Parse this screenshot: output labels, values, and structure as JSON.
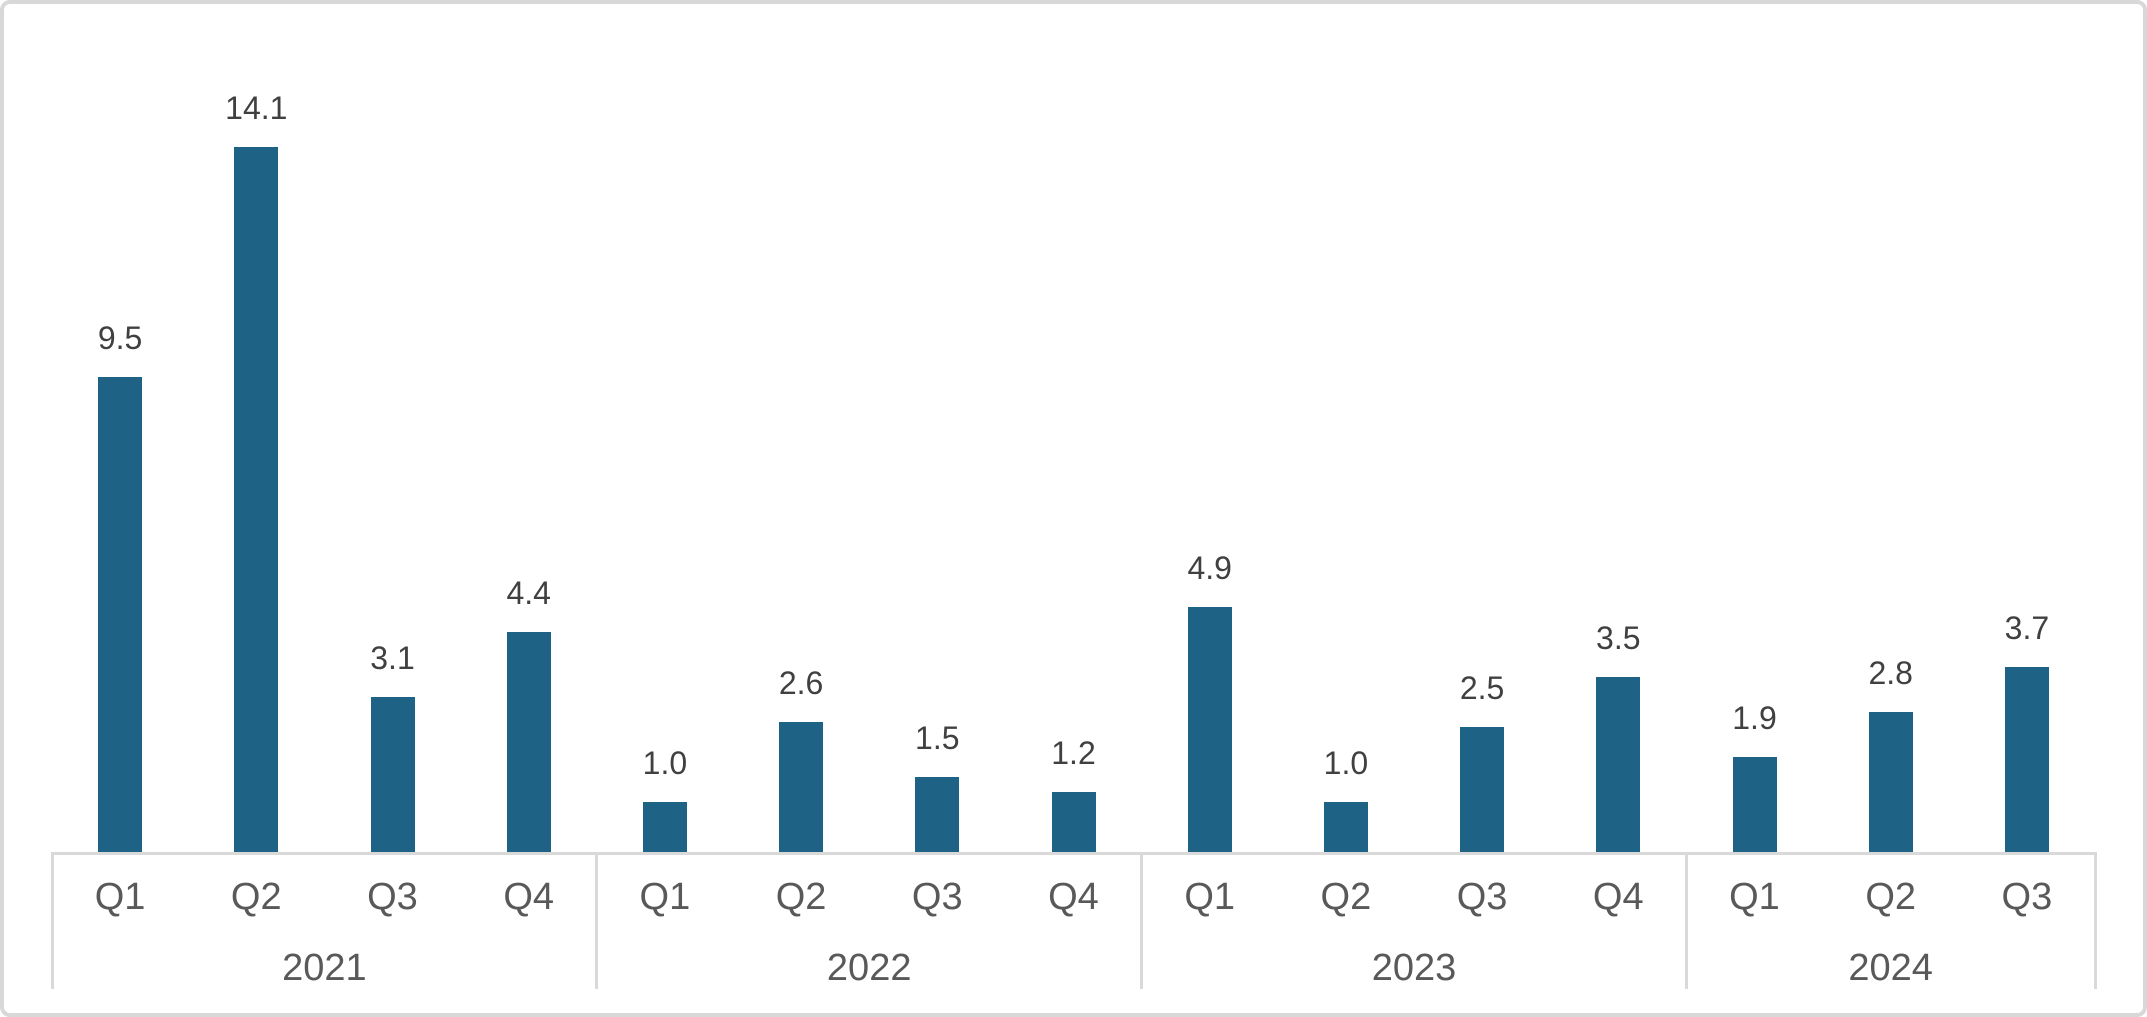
{
  "chart_data": {
    "type": "bar",
    "grid": false,
    "legend": false,
    "y_axis_labels_visible": false,
    "ylim": [
      0,
      15
    ],
    "bar_color": "#1e6386",
    "value_label_color": "#404040",
    "axis_label_color": "#595959",
    "axis_line_color": "#d9d9d9",
    "groups": [
      {
        "year": "2021",
        "quarters": [
          "Q1",
          "Q2",
          "Q3",
          "Q4"
        ],
        "values": [
          9.5,
          14.1,
          3.1,
          4.4
        ],
        "labels": [
          "9.5",
          "14.1",
          "3.1",
          "4.4"
        ]
      },
      {
        "year": "2022",
        "quarters": [
          "Q1",
          "Q2",
          "Q3",
          "Q4"
        ],
        "values": [
          1.0,
          2.6,
          1.5,
          1.2
        ],
        "labels": [
          "1.0",
          "2.6",
          "1.5",
          "1.2"
        ]
      },
      {
        "year": "2023",
        "quarters": [
          "Q1",
          "Q2",
          "Q3",
          "Q4"
        ],
        "values": [
          4.9,
          1.0,
          2.5,
          3.5
        ],
        "labels": [
          "4.9",
          "1.0",
          "2.5",
          "3.5"
        ]
      },
      {
        "year": "2024",
        "quarters": [
          "Q1",
          "Q2",
          "Q3"
        ],
        "values": [
          1.9,
          2.8,
          3.7
        ],
        "labels": [
          "1.9",
          "2.8",
          "3.7"
        ]
      }
    ]
  }
}
